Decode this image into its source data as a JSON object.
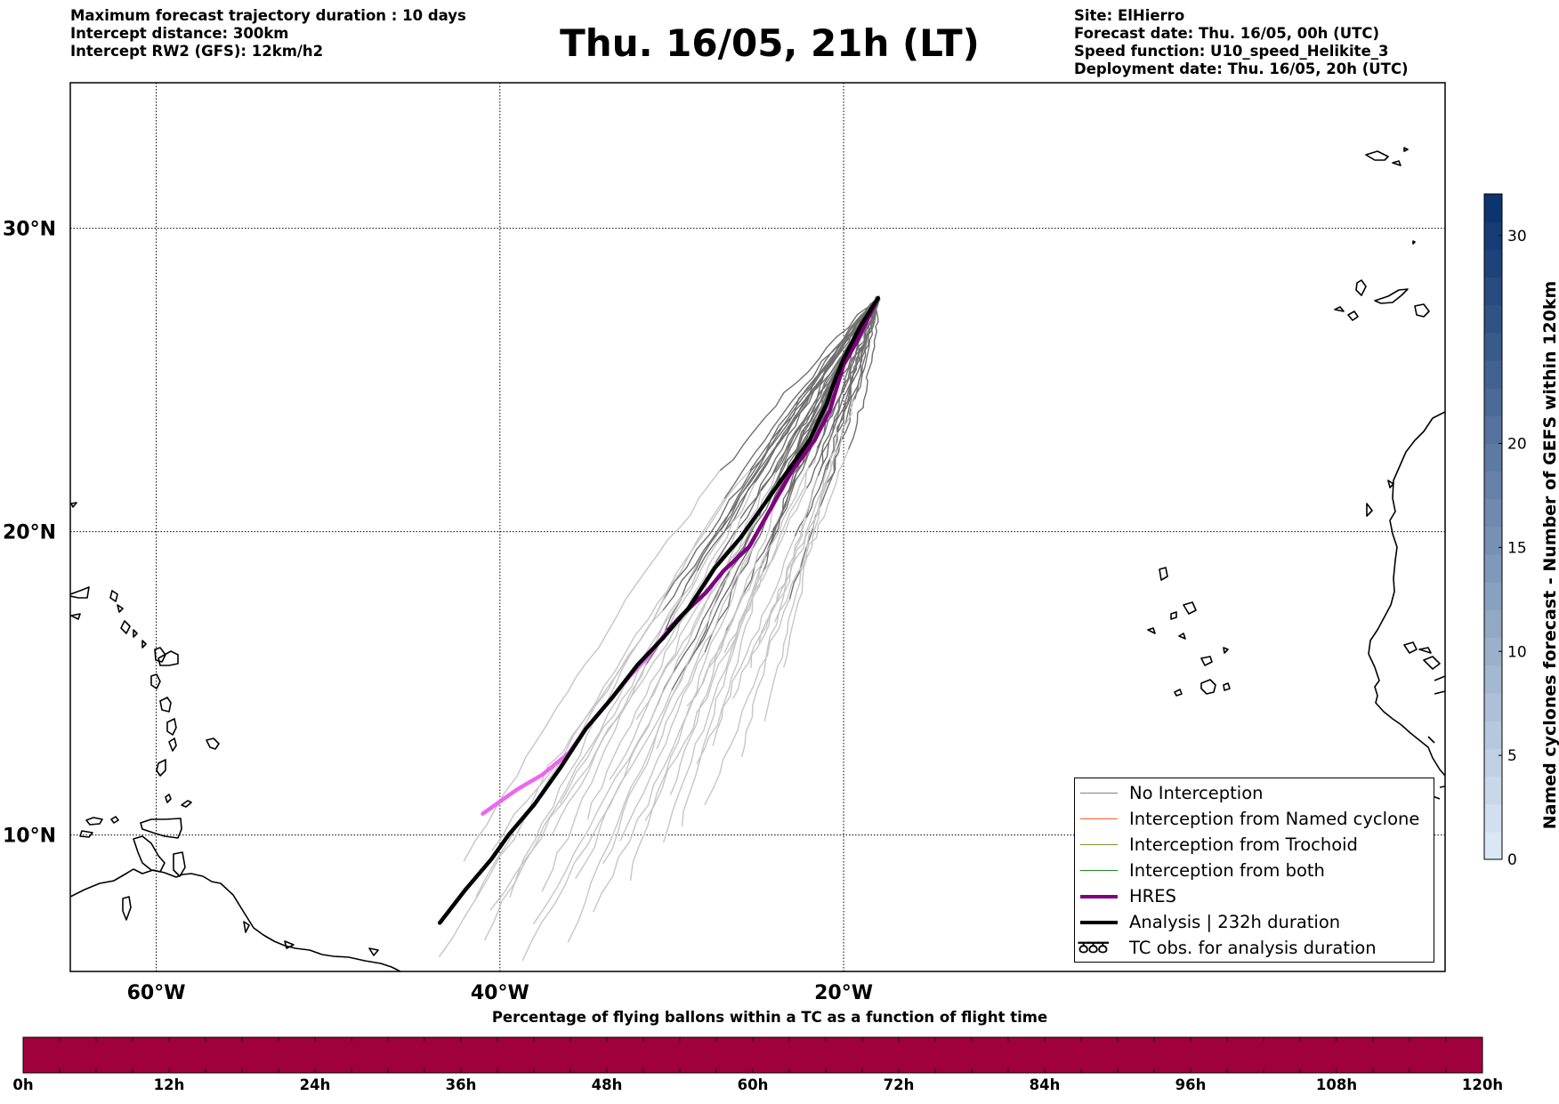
{
  "header": {
    "title": "Thu. 16/05, 21h (LT)",
    "left_info": [
      "Maximum forecast trajectory duration : 10 days",
      "Intercept distance: 300km",
      "Intercept RW2 (GFS):  12km/h2"
    ],
    "right_info": [
      "Site: ElHierro",
      "Forecast date: Thu. 16/05, 00h (UTC)",
      "Speed function: U10_speed_Helikite_3",
      "Deployment date: Thu. 16/05, 20h (UTC)"
    ]
  },
  "map": {
    "lon_range": [
      -65,
      15
    ],
    "lat_range": [
      5.5,
      34.8
    ],
    "lat_ticks": [
      {
        "value": 10,
        "label": "10°N"
      },
      {
        "value": 20,
        "label": "20°N"
      },
      {
        "value": 30,
        "label": "30°N"
      }
    ],
    "lon_ticks": [
      {
        "value": -60,
        "label": "60°W"
      },
      {
        "value": -40,
        "label": "40°W"
      },
      {
        "value": -20,
        "label": "20°W"
      }
    ],
    "deployment_site": {
      "lon": -18.0,
      "lat": 27.7
    },
    "analysis_track": [
      [
        -18,
        27.7
      ],
      [
        -19,
        26.8
      ],
      [
        -20,
        25.7
      ],
      [
        -20.5,
        25
      ],
      [
        -21,
        24.2
      ],
      [
        -22,
        23
      ],
      [
        -23,
        22.2
      ],
      [
        -24.5,
        21
      ],
      [
        -26,
        19.8
      ],
      [
        -27.5,
        18.8
      ],
      [
        -29,
        17.5
      ],
      [
        -30.5,
        16.5
      ],
      [
        -32,
        15.6
      ],
      [
        -33.5,
        14.5
      ],
      [
        -35,
        13.5
      ],
      [
        -36.5,
        12.2
      ],
      [
        -38,
        11
      ],
      [
        -39.5,
        10
      ],
      [
        -40.5,
        9.2
      ],
      [
        -42,
        8.2
      ],
      [
        -43.5,
        7.1
      ]
    ],
    "hres_track": [
      [
        -18,
        27.7
      ],
      [
        -19.3,
        26.2
      ],
      [
        -20,
        25.5
      ],
      [
        -20.8,
        24
      ],
      [
        -21.7,
        23
      ],
      [
        -23,
        22
      ],
      [
        -24.3,
        20.7
      ],
      [
        -25.5,
        19.5
      ],
      [
        -27,
        18.7
      ],
      [
        -28,
        18
      ],
      [
        -29.5,
        17.2
      ],
      [
        -30.3,
        16.7
      ]
    ],
    "hres_pink_track": [
      [
        -30.3,
        16.7
      ],
      [
        -31.2,
        16
      ],
      [
        -32.5,
        15.2
      ],
      [
        -33.5,
        14.5
      ],
      [
        -35,
        13.5
      ],
      [
        -36,
        12.7
      ],
      [
        -37.5,
        12
      ],
      [
        -39,
        11.5
      ],
      [
        -41,
        10.7
      ]
    ],
    "colors": {
      "hres": "#800080",
      "hres_late": "#ee66ee",
      "analysis": "#000000",
      "no_interception": "#707070",
      "ensemble_light": "#c6c6c6"
    }
  },
  "legend": {
    "items": [
      {
        "label": "No Interception",
        "color": "#808080",
        "width": 1.5
      },
      {
        "label": "Interception from Named cyclone",
        "color": "#ff5a1e",
        "width": 1.5
      },
      {
        "label": "Interception from Trochoid",
        "color": "#8c8c28",
        "width": 1.5
      },
      {
        "label": "Interception from both",
        "color": "#228b22",
        "width": 1.5
      },
      {
        "label": "HRES",
        "color": "#800080",
        "width": 4
      },
      {
        "label": "Analysis | 232h duration",
        "color": "#000000",
        "width": 4
      }
    ],
    "tc_obs": {
      "glyph": "ਠਠਠ",
      "label": "TC obs. for analysis duration"
    }
  },
  "colorbar_right": {
    "label": "Named cyclones forecast - Number of GEFS within 120km",
    "min": 0,
    "max": 32,
    "ticks": [
      0,
      5,
      10,
      15,
      20,
      30
    ]
  },
  "colorbar_bottom": {
    "title": "Percentage of flying ballons within a TC as a function of flight time",
    "color": "#a0003c",
    "ticks": [
      "0h",
      "12h",
      "24h",
      "36h",
      "48h",
      "60h",
      "72h",
      "84h",
      "96h",
      "108h",
      "120h"
    ]
  }
}
